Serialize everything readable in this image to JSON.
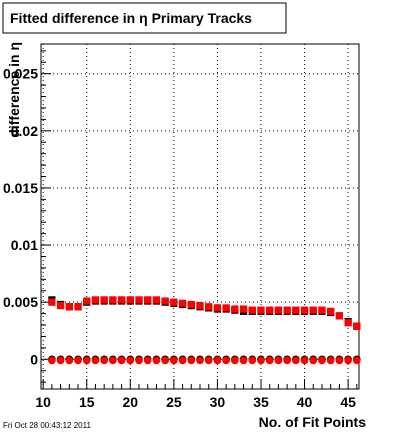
{
  "chart_data": {
    "type": "scatter",
    "title": "Fitted difference in  η Primary Tracks",
    "xlabel": "No. of Fit Points",
    "ylabel": "difference in η",
    "xlim": [
      9.75,
      46.25
    ],
    "ylim": [
      -0.0026,
      0.0276
    ],
    "grid": true,
    "legend": "none",
    "x_ticks": [
      10,
      15,
      20,
      25,
      30,
      35,
      40,
      45
    ],
    "y_ticks": [
      0,
      0.005,
      0.01,
      0.015,
      0.02,
      0.025
    ],
    "y_tick_labels": [
      "0",
      "0.005",
      "0.01",
      "0.015",
      "0.02",
      "0.025"
    ],
    "series": [
      {
        "marker": "square",
        "color": "#000000",
        "x": [
          11,
          12,
          13,
          14,
          15,
          16,
          17,
          18,
          19,
          20,
          21,
          22,
          23,
          24,
          25,
          26,
          27,
          28,
          29,
          30,
          31,
          32,
          33,
          34,
          35,
          36,
          37,
          38,
          39,
          40,
          41,
          42,
          43,
          44,
          45,
          46
        ],
        "y": [
          0.0052,
          0.0048,
          0.0046,
          0.0046,
          0.005,
          0.0051,
          0.0051,
          0.0051,
          0.0051,
          0.0051,
          0.0051,
          0.0051,
          0.0051,
          0.005,
          0.0049,
          0.0048,
          0.0047,
          0.0046,
          0.0045,
          0.0044,
          0.0044,
          0.0043,
          0.0042,
          0.0042,
          0.0042,
          0.0042,
          0.0042,
          0.0042,
          0.0042,
          0.0042,
          0.0042,
          0.0042,
          0.0041,
          0.0038,
          0.0033,
          0.0029
        ]
      },
      {
        "marker": "square",
        "color": "#ff0000",
        "x": [
          11,
          12,
          13,
          14,
          15,
          16,
          17,
          18,
          19,
          20,
          21,
          22,
          23,
          24,
          25,
          26,
          27,
          28,
          29,
          30,
          31,
          32,
          33,
          34,
          35,
          36,
          37,
          38,
          39,
          40,
          41,
          42,
          43,
          44,
          45,
          46
        ],
        "y": [
          0.005,
          0.0047,
          0.0046,
          0.0046,
          0.0051,
          0.0052,
          0.0052,
          0.0052,
          0.0052,
          0.0052,
          0.0052,
          0.0052,
          0.0052,
          0.0051,
          0.005,
          0.0049,
          0.0048,
          0.0047,
          0.0046,
          0.0045,
          0.0045,
          0.0044,
          0.0044,
          0.0043,
          0.0043,
          0.0043,
          0.0043,
          0.0043,
          0.0043,
          0.0043,
          0.0043,
          0.0043,
          0.0042,
          0.0038,
          0.0032,
          0.0029
        ]
      },
      {
        "marker": "circle",
        "color": "#000000",
        "x": [
          11,
          12,
          13,
          14,
          15,
          16,
          17,
          18,
          19,
          20,
          21,
          22,
          23,
          24,
          25,
          26,
          27,
          28,
          29,
          30,
          31,
          32,
          33,
          34,
          35,
          36,
          37,
          38,
          39,
          40,
          41,
          42,
          43,
          44,
          45,
          46
        ],
        "y": [
          0,
          0,
          0,
          0,
          0,
          0,
          0,
          0,
          0,
          0,
          0,
          0,
          0,
          0,
          0,
          0,
          0,
          0,
          0,
          0,
          0,
          0,
          0,
          0,
          0,
          0,
          0,
          0,
          0,
          0,
          0,
          0,
          0,
          0,
          0,
          0
        ]
      },
      {
        "marker": "circle",
        "color": "#ff0000",
        "x": [
          11,
          12,
          13,
          14,
          15,
          16,
          17,
          18,
          19,
          20,
          21,
          22,
          23,
          24,
          25,
          26,
          27,
          28,
          29,
          30,
          31,
          32,
          33,
          34,
          35,
          36,
          37,
          38,
          39,
          40,
          41,
          42,
          43,
          44,
          45,
          46
        ],
        "y": [
          -0.0001,
          -0.0001,
          -0.0001,
          -0.0001,
          -0.0001,
          -0.0001,
          -0.0001,
          -0.0001,
          -0.0001,
          -0.0001,
          -0.0001,
          -0.0001,
          -0.0001,
          -0.0001,
          -0.0001,
          -0.0001,
          -0.0001,
          -0.0001,
          -0.0001,
          -0.0001,
          -0.0001,
          -0.0001,
          -0.0001,
          -0.0001,
          -0.0001,
          -0.0001,
          -0.0001,
          -0.0001,
          -0.0001,
          -0.0001,
          -0.0001,
          -0.0001,
          -0.0001,
          -0.0001,
          -0.0001,
          -0.0001
        ]
      }
    ]
  },
  "footer": {
    "timestamp": "Fri Oct 28 00:43:12 2011"
  }
}
